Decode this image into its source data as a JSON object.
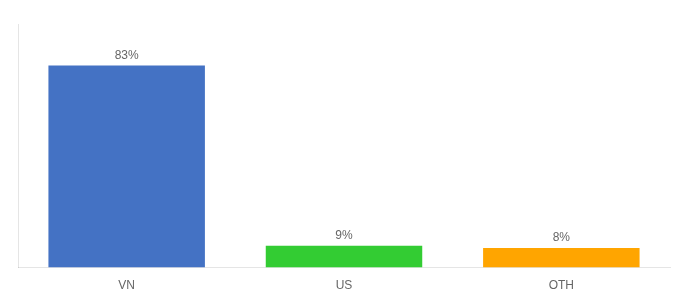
{
  "chart_data": {
    "type": "bar",
    "categories": [
      "VN",
      "US",
      "OTH"
    ],
    "values": [
      83,
      9,
      8
    ],
    "value_labels": [
      "83%",
      "9%",
      "8%"
    ],
    "colors": [
      "#4472C4",
      "#33CC33",
      "#FFA500"
    ],
    "ylim": [
      0,
      100
    ],
    "grid": false,
    "data_labels": true,
    "tick_labels": "x"
  }
}
